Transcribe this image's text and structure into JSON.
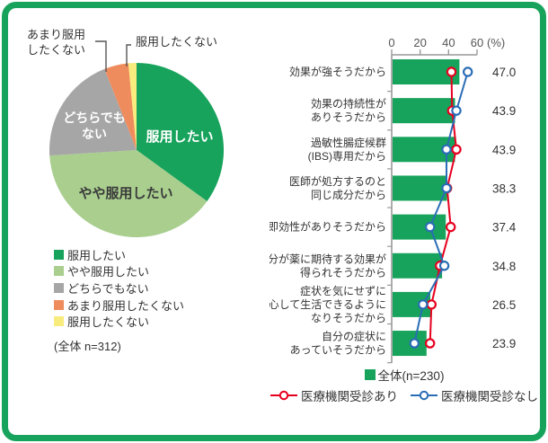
{
  "colors": {
    "frame_green": "#18a35c",
    "bar_green": "#18a35c",
    "pie_dark_green": "#18a35c",
    "pie_light_green": "#a9ce8e",
    "pie_gray": "#a6a6a6",
    "pie_orange": "#ef8c5e",
    "pie_yellow": "#f7ec7d",
    "line_red": "#e6001f",
    "line_blue": "#2a6db5",
    "axis_gray": "#999999",
    "text_dark": "#333333"
  },
  "pie": {
    "slice_labels": [
      {
        "lines": [
          "服用したい"
        ]
      },
      {
        "lines": [
          "やや服用したい"
        ]
      },
      {
        "lines": [
          "どちらでも",
          "ない"
        ]
      }
    ],
    "callouts": [
      {
        "lines": [
          "あまり服用",
          "したくない"
        ]
      },
      {
        "lines": [
          "服用したくない"
        ]
      }
    ],
    "legend": [
      "服用したい",
      "やや服用したい",
      "どちらでもない",
      "あまり服用したくない",
      "服用したくない"
    ],
    "total": "(全体 n=312)"
  },
  "bar": {
    "legend_total": "全体(n=230)",
    "legend_red": "医療機関受診あり",
    "legend_blue": "医療機関受診なし"
  },
  "chart_data": [
    {
      "type": "pie",
      "title": "",
      "labels": [
        "服用したい",
        "やや服用したい",
        "どちらでもない",
        "あまり服用したくない",
        "服用したくない"
      ],
      "values_pct_estimated": [
        35.0,
        39.0,
        20.0,
        4.5,
        1.5
      ],
      "colors": [
        "#18a35c",
        "#a9ce8e",
        "#a6a6a6",
        "#ef8c5e",
        "#f7ec7d"
      ],
      "n_label": "(全体 n=312)",
      "start": "top",
      "direction": "clockwise"
    },
    {
      "type": "bar",
      "orientation": "horizontal",
      "categories": [
        [
          "効果が強そうだから"
        ],
        [
          "効果の持続性が",
          "ありそうだから"
        ],
        [
          "過敏性腸症候群",
          "(IBS)専用だから"
        ],
        [
          "医師が処方するのと",
          "同じ成分だから"
        ],
        [
          "即効性がありそうだから"
        ],
        [
          "自分が薬に期待する効果が",
          "得られそうだから"
        ],
        [
          "症状を気にせずに",
          "安心して生活できるように",
          "なりそうだから"
        ],
        [
          "自分の症状に",
          "あっていそうだから"
        ]
      ],
      "series": [
        {
          "name": "全体(n=230)",
          "render": "bar",
          "color": "#18a35c",
          "values": [
            47.0,
            43.9,
            43.9,
            38.3,
            37.4,
            34.8,
            26.5,
            23.9
          ]
        },
        {
          "name": "医療機関受診あり",
          "render": "line",
          "color": "#e6001f",
          "values_estimated": [
            42.0,
            42.5,
            45.5,
            39.0,
            41.5,
            34.0,
            28.0,
            27.0
          ]
        },
        {
          "name": "医療機関受診なし",
          "render": "line",
          "color": "#2a6db5",
          "values_estimated": [
            53.5,
            45.5,
            38.5,
            38.5,
            27.0,
            37.0,
            22.0,
            16.0
          ]
        }
      ],
      "value_labels": [
        "47.0",
        "43.9",
        "43.9",
        "38.3",
        "37.4",
        "34.8",
        "26.5",
        "23.9"
      ],
      "x_ticks": [
        "0",
        "20",
        "40",
        "60"
      ],
      "x_tick_values": [
        0,
        20,
        40,
        60
      ],
      "x_axis_suffix": "(%)",
      "xlim": [
        0,
        60
      ],
      "grid": false,
      "legend_position": "bottom"
    }
  ]
}
